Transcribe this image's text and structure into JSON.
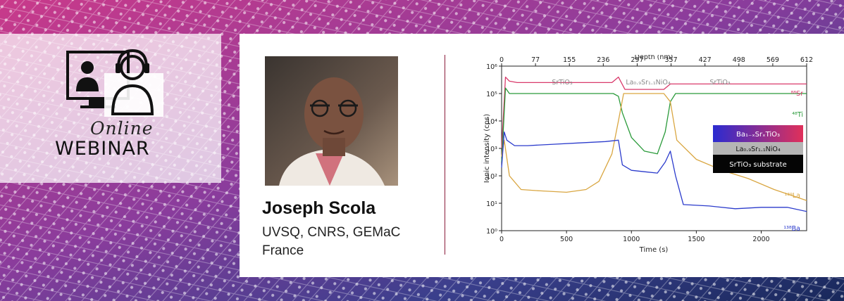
{
  "banner": {
    "online_label": "Online",
    "webinar_label": "WEBINAR",
    "icon": "video-conference-headset-icon"
  },
  "speaker": {
    "name": "Joseph Scola",
    "affiliation": "UVSQ, CNRS, GEMaC",
    "country": "France"
  },
  "colors": {
    "magenta": "#d63a8c",
    "navy": "#1c2a5e",
    "divider": "#8a1a3a"
  },
  "chart_data": {
    "type": "line",
    "xlabel": "Time (s)",
    "ylabel": "Ionic intensity (cps)",
    "top_axis_label": "Depth (nm)",
    "x_ticks": [
      0,
      500,
      1000,
      1500,
      2000
    ],
    "top_ticks": [
      "0",
      "77",
      "155",
      "236",
      "297",
      "357",
      "427",
      "498",
      "569",
      "612"
    ],
    "y_ticks": [
      "10⁰",
      "10¹",
      "10²",
      "10³",
      "10⁴",
      "10⁵",
      "10⁶"
    ],
    "xlim": [
      0,
      2350
    ],
    "ylim_log10": [
      0,
      6
    ],
    "region_labels": [
      "SrTiO₃",
      "La₀.₉Sr₁.₁NiO₄",
      "SrTiO₃"
    ],
    "legend": [
      "Ba₁₋ₓSrₓTiO₃",
      "La₀.₉Sr₁.₁NiO₄",
      "SrTiO₃ substrate"
    ],
    "series": [
      {
        "name": "⁸⁸Sr",
        "color": "#d93a6b",
        "x": [
          0,
          30,
          60,
          120,
          300,
          600,
          850,
          900,
          950,
          1100,
          1250,
          1300,
          1400,
          1700,
          2000,
          2350
        ],
        "y": [
          3.0,
          5.6,
          5.45,
          5.4,
          5.4,
          5.4,
          5.4,
          5.6,
          5.15,
          5.15,
          5.15,
          5.35,
          5.35,
          5.35,
          5.35,
          5.35
        ]
      },
      {
        "name": "⁴⁸Ti",
        "color": "#2a9a3a",
        "x": [
          0,
          30,
          60,
          200,
          600,
          860,
          900,
          930,
          1000,
          1100,
          1200,
          1260,
          1300,
          1340,
          1500,
          2000,
          2350
        ],
        "y": [
          2.5,
          5.2,
          5.0,
          5.0,
          5.0,
          5.0,
          4.9,
          4.3,
          3.4,
          2.9,
          2.8,
          3.6,
          4.7,
          5.0,
          5.0,
          5.0,
          5.0
        ]
      },
      {
        "name": "¹³⁹La",
        "color": "#d9a641",
        "x": [
          0,
          20,
          60,
          150,
          300,
          500,
          650,
          750,
          850,
          900,
          940,
          1000,
          1250,
          1300,
          1350,
          1500,
          1700,
          1900,
          2100,
          2350
        ],
        "y": [
          2.7,
          3.3,
          2.0,
          1.5,
          1.45,
          1.4,
          1.5,
          1.8,
          2.8,
          4.0,
          5.0,
          5.0,
          5.0,
          4.7,
          3.3,
          2.6,
          2.2,
          1.9,
          1.5,
          1.1
        ]
      },
      {
        "name": "¹³⁸Ba",
        "color": "#2b3bcc",
        "x": [
          0,
          20,
          40,
          100,
          200,
          400,
          600,
          800,
          900,
          930,
          1000,
          1100,
          1200,
          1260,
          1300,
          1340,
          1400,
          1600,
          1800,
          2000,
          2200,
          2350
        ],
        "y": [
          2.3,
          3.6,
          3.3,
          3.1,
          3.1,
          3.15,
          3.2,
          3.25,
          3.3,
          2.4,
          2.2,
          2.15,
          2.1,
          2.5,
          2.9,
          2.0,
          0.95,
          0.9,
          0.8,
          0.85,
          0.85,
          0.7
        ]
      }
    ]
  }
}
